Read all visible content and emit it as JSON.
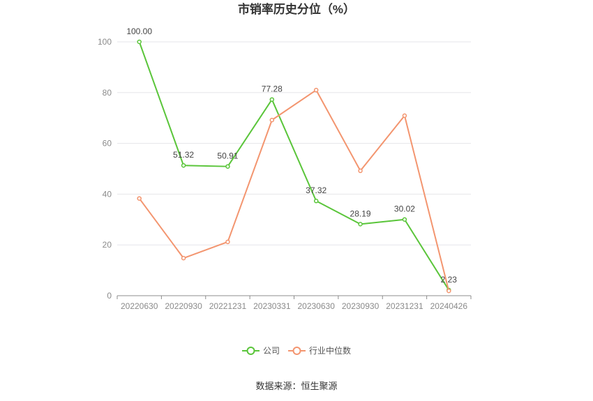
{
  "source": "数据来源：恒生聚源",
  "chart_data": {
    "type": "line",
    "title": "市销率历史分位（%）",
    "categories": [
      "20220630",
      "20220930",
      "20221231",
      "20230331",
      "20230630",
      "20230930",
      "20231231",
      "20240426"
    ],
    "series": [
      {
        "name": "公司",
        "color": "#5ac53a",
        "values": [
          100.0,
          51.32,
          50.91,
          77.28,
          37.32,
          28.19,
          30.02,
          2.23
        ],
        "labels": [
          "100.00",
          "51.32",
          "50.91",
          "77.28",
          "37.32",
          "28.19",
          "30.02",
          "2.23"
        ]
      },
      {
        "name": "行业中位数",
        "color": "#f3956f",
        "values": [
          38.3,
          14.8,
          21.2,
          69.2,
          81.0,
          49.2,
          70.9,
          1.9
        ]
      }
    ],
    "ylim": [
      0,
      100
    ],
    "yticks": [
      0,
      20,
      40,
      60,
      80,
      100
    ],
    "grid": true,
    "legend": "bottom"
  }
}
